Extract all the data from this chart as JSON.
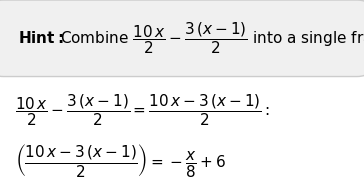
{
  "hint_box_bg": "#f0f0f0",
  "hint_box_edge": "#cccccc",
  "bg_color": "#ffffff",
  "font_size_hint": 11,
  "font_size_math": 11
}
